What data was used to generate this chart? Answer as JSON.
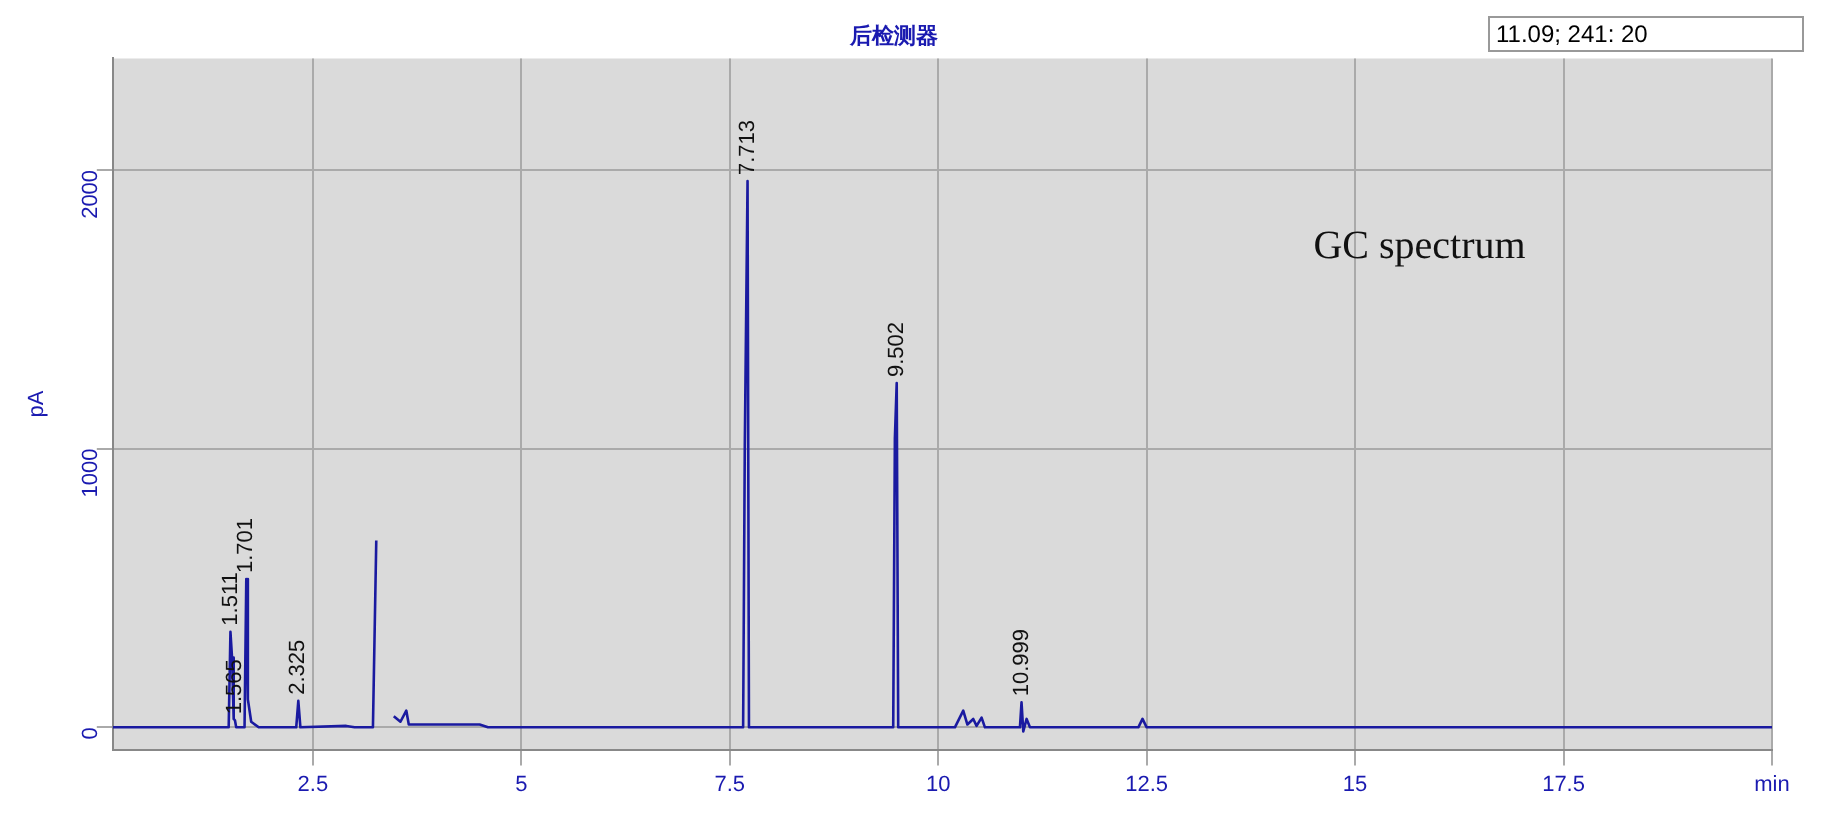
{
  "chart_data": {
    "type": "line",
    "title": "后检测器",
    "ylabel": "pA",
    "x": [
      0.1,
      1.49,
      1.511,
      1.53,
      1.55,
      1.565,
      1.58,
      1.68,
      1.701,
      1.72,
      1.76,
      1.85,
      2.3,
      2.325,
      2.35,
      2.9,
      3.0,
      3.22,
      3.26,
      3.3,
      3.44,
      3.47,
      3.55,
      3.62,
      3.65,
      4.0,
      4.5,
      4.6,
      7.66,
      7.68,
      7.713,
      7.73,
      9.46,
      9.48,
      9.502,
      9.52,
      10.2,
      10.3,
      10.35,
      10.42,
      10.46,
      10.52,
      10.56,
      10.98,
      10.999,
      11.02,
      11.06,
      11.1,
      12.4,
      12.45,
      12.5,
      20
    ],
    "series": [
      {
        "color": "#1a1aa0",
        "values": [
          0,
          0,
          343,
          250,
          30,
          25,
          0,
          0,
          532,
          100,
          20,
          0,
          0,
          95,
          0,
          5,
          0,
          0,
          670,
          null,
          null,
          40,
          20,
          60,
          10,
          10,
          10,
          0,
          0,
          1010,
          1960,
          0,
          0,
          1035,
          1235,
          0,
          0,
          60,
          10,
          30,
          5,
          35,
          0,
          0,
          90,
          -15,
          30,
          0,
          0,
          30,
          0,
          0
        ]
      }
    ],
    "xlim": [
      0.1,
      20
    ],
    "ylim": [
      -80,
      2400
    ],
    "xticks": [
      2.5,
      5,
      7.5,
      10,
      12.5,
      15,
      17.5,
      {
        "value": 20,
        "label": "min"
      }
    ],
    "yticks": [
      0,
      1000,
      2000
    ],
    "grid": true,
    "legend": false,
    "marker": "none",
    "line_style": "solid",
    "annotations": [
      "11.09; 241: 20",
      "GC spectrum",
      {
        "text": "1.511",
        "x": 1.511,
        "y": 343
      },
      {
        "text": "1.565",
        "x": 1.565,
        "y": 25
      },
      {
        "text": "1.701",
        "x": 1.701,
        "y": 532
      },
      {
        "text": "2.325",
        "x": 2.325,
        "y": 95
      },
      {
        "text": "7.713",
        "x": 7.713,
        "y": 1960
      },
      {
        "text": "9.502",
        "x": 9.502,
        "y": 1235
      },
      {
        "text": "10.999",
        "x": 10.999,
        "y": 90
      }
    ]
  }
}
